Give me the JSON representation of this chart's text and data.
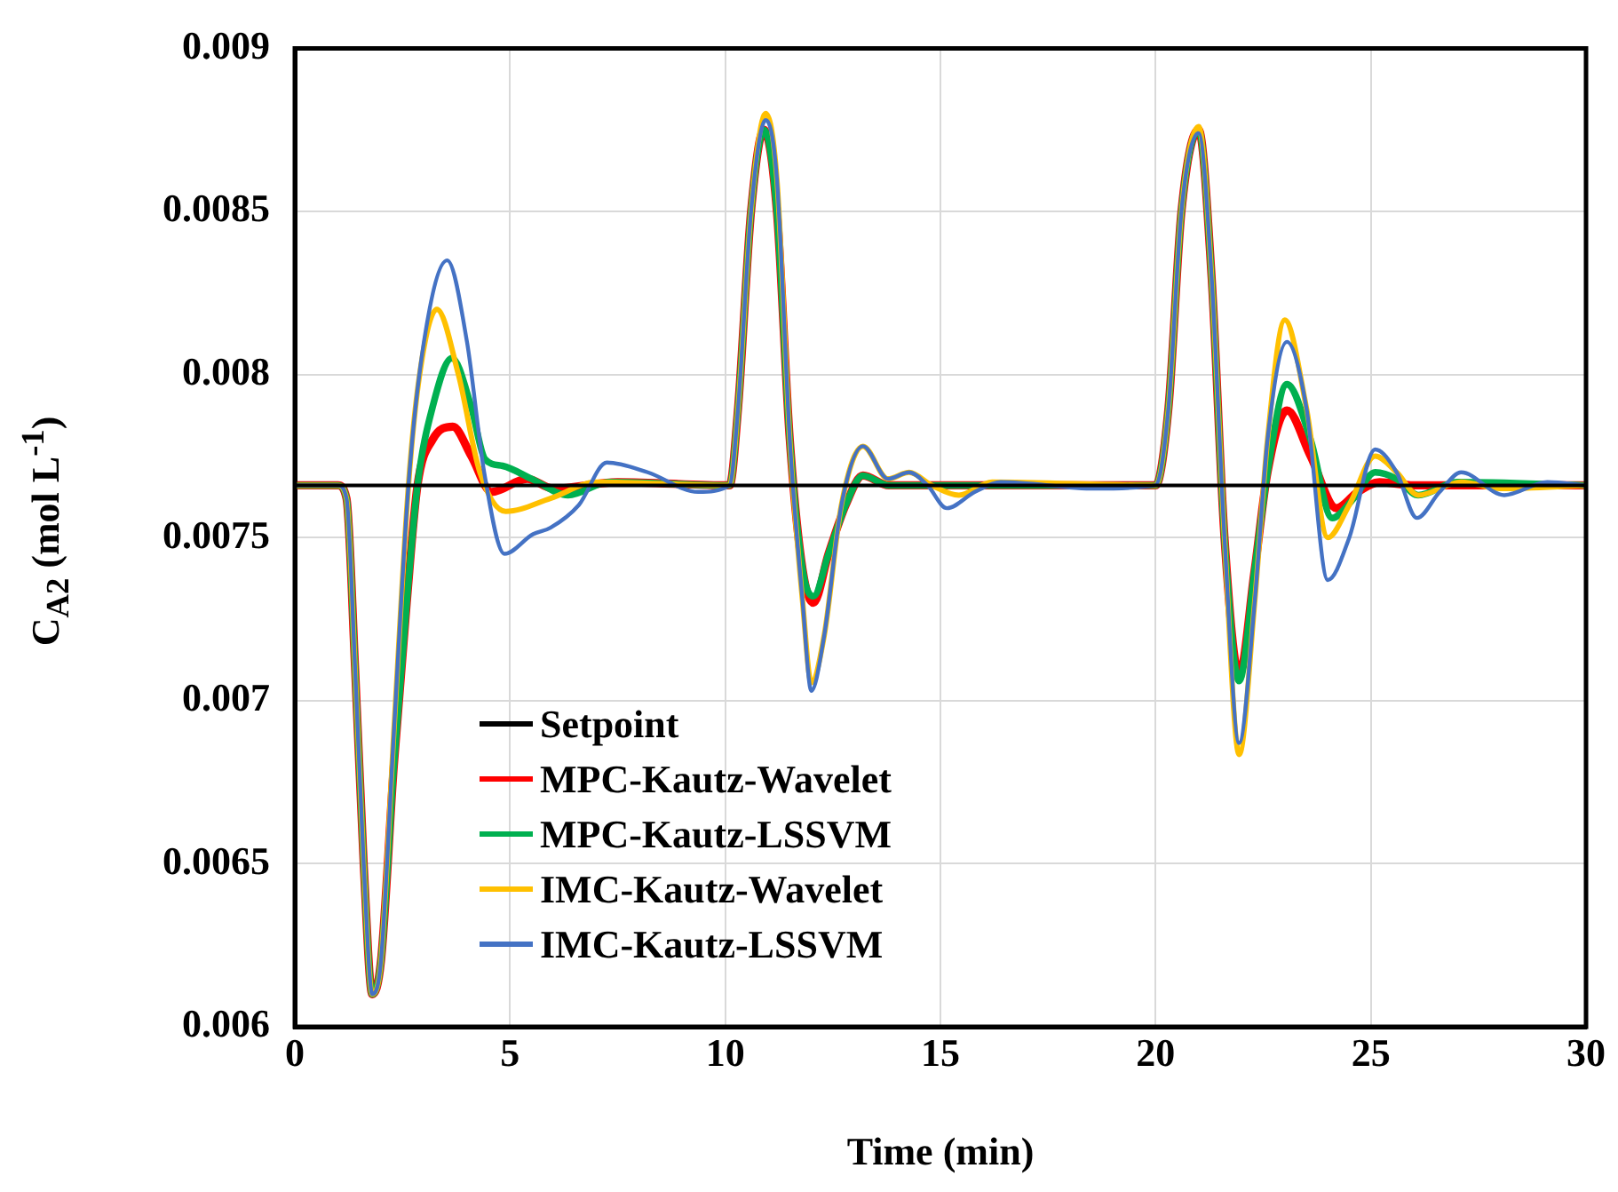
{
  "chart_data": {
    "type": "line",
    "xlabel": "Time (min)",
    "ylabel": "C$_{A2}$ (mol L$^{-1}$)",
    "xlim": [
      0,
      30
    ],
    "xticks": [
      0,
      5,
      10,
      15,
      20,
      25,
      30
    ],
    "ylim": [
      0.006,
      0.009
    ],
    "yticks": [
      0.006,
      0.0065,
      0.007,
      0.0075,
      0.008,
      0.0085,
      0.009
    ],
    "grid": true,
    "legend": "bottom left",
    "marker": "none",
    "line_style": "solid",
    "series": [
      {
        "name": "Setpoint",
        "color": "#000000",
        "x": [
          0,
          30
        ],
        "values": [
          0.00766,
          0.00766
        ]
      },
      {
        "name": "MPC-Kautz-Wavelet",
        "color": "#ff0000",
        "x": [
          0,
          1.0,
          1.2,
          1.4,
          1.6,
          1.8,
          2.0,
          2.3,
          2.6,
          2.85,
          3.2,
          3.67,
          4.1,
          4.57,
          5.4,
          6.0,
          7.5,
          10.1,
          10.3,
          10.6,
          10.9,
          11.2,
          11.5,
          11.8,
          12.05,
          12.4,
          12.8,
          13.2,
          13.8,
          15,
          20.0,
          20.3,
          20.6,
          21.0,
          21.3,
          21.6,
          21.94,
          22.3,
          22.6,
          23.05,
          23.6,
          24.2,
          24.7,
          25.2,
          26,
          30
        ],
        "values": [
          0.00766,
          0.00766,
          0.00762,
          0.0071,
          0.0065,
          0.0061,
          0.0062,
          0.0068,
          0.0073,
          0.00766,
          0.0078,
          0.00784,
          0.00775,
          0.00764,
          0.00768,
          0.00765,
          0.00767,
          0.00766,
          0.0079,
          0.0085,
          0.00875,
          0.0085,
          0.0078,
          0.0074,
          0.0073,
          0.00745,
          0.0076,
          0.00769,
          0.00766,
          0.00766,
          0.00766,
          0.0079,
          0.0085,
          0.00875,
          0.0083,
          0.0075,
          0.00708,
          0.0074,
          0.0077,
          0.00789,
          0.00775,
          0.00759,
          0.00764,
          0.00767,
          0.00766,
          0.00766
        ]
      },
      {
        "name": "MPC-Kautz-LSSVM",
        "color": "#00b050",
        "x": [
          0,
          1.0,
          1.2,
          1.4,
          1.6,
          1.8,
          2.0,
          2.3,
          2.6,
          2.85,
          3.2,
          3.65,
          4.1,
          4.42,
          4.83,
          5.5,
          6.35,
          7.3,
          10.1,
          10.3,
          10.6,
          10.9,
          11.2,
          11.5,
          11.8,
          12.05,
          12.4,
          12.8,
          13.2,
          13.8,
          15,
          20.0,
          20.3,
          20.6,
          21.0,
          21.3,
          21.6,
          21.94,
          22.3,
          22.6,
          23.05,
          23.6,
          24.1,
          24.6,
          25.1,
          25.6,
          26.1,
          27,
          30
        ],
        "values": [
          0.00766,
          0.00766,
          0.00762,
          0.0071,
          0.0065,
          0.0061,
          0.0062,
          0.0068,
          0.0073,
          0.00766,
          0.0079,
          0.00805,
          0.0079,
          0.00774,
          0.00772,
          0.00768,
          0.00763,
          0.00767,
          0.00766,
          0.0079,
          0.0085,
          0.00875,
          0.0085,
          0.0078,
          0.0074,
          0.00732,
          0.00745,
          0.0076,
          0.00769,
          0.00766,
          0.00766,
          0.00766,
          0.0079,
          0.0085,
          0.00875,
          0.0083,
          0.0075,
          0.00706,
          0.0074,
          0.0077,
          0.00797,
          0.0078,
          0.00756,
          0.00762,
          0.0077,
          0.00768,
          0.00763,
          0.00767,
          0.00766
        ]
      },
      {
        "name": "IMC-Kautz-Wavelet",
        "color": "#ffc000",
        "x": [
          0,
          1.0,
          1.2,
          1.4,
          1.6,
          1.8,
          2.0,
          2.3,
          2.64,
          2.9,
          3.3,
          3.8,
          4.3,
          4.9,
          5.94,
          7.0,
          10.1,
          10.3,
          10.6,
          10.94,
          11.2,
          11.5,
          11.8,
          12.0,
          12.3,
          12.7,
          13.2,
          13.78,
          14.27,
          14.8,
          15.43,
          16.2,
          20.0,
          20.3,
          20.6,
          21.0,
          21.3,
          21.6,
          21.94,
          22.3,
          22.6,
          23.0,
          23.5,
          24.0,
          24.5,
          25.1,
          25.6,
          26.1,
          27.1,
          28,
          30
        ],
        "values": [
          0.00766,
          0.00766,
          0.00762,
          0.0071,
          0.0065,
          0.0061,
          0.0062,
          0.0069,
          0.00766,
          0.008,
          0.0082,
          0.008,
          0.0077,
          0.00758,
          0.00762,
          0.00767,
          0.00766,
          0.0079,
          0.0085,
          0.0088,
          0.0086,
          0.0078,
          0.0073,
          0.007055,
          0.0072,
          0.0076,
          0.00778,
          0.00768,
          0.0077,
          0.00766,
          0.00763,
          0.00767,
          0.00766,
          0.0079,
          0.0085,
          0.00876,
          0.0083,
          0.0075,
          0.006835,
          0.0073,
          0.0078,
          0.008167,
          0.0079,
          0.0075,
          0.0076,
          0.00775,
          0.0077,
          0.00763,
          0.00767,
          0.00765,
          0.00766
        ]
      },
      {
        "name": "IMC-Kautz-LSSVM",
        "color": "#4472c4",
        "x": [
          0,
          1.0,
          1.2,
          1.4,
          1.6,
          1.8,
          2.0,
          2.3,
          2.64,
          3.0,
          3.54,
          4.0,
          4.4,
          4.87,
          5.53,
          5.94,
          6.6,
          7.25,
          8.2,
          9.37,
          10.1,
          10.3,
          10.6,
          10.94,
          11.2,
          11.5,
          11.8,
          12.0,
          12.3,
          12.7,
          13.2,
          13.78,
          14.27,
          14.7,
          15.15,
          15.8,
          16.4,
          18.6,
          20.0,
          20.3,
          20.6,
          21.0,
          21.3,
          21.6,
          21.94,
          22.3,
          22.6,
          23.05,
          23.5,
          24.0,
          24.5,
          25.1,
          25.6,
          26.07,
          26.6,
          27.1,
          28.1,
          29.1,
          30
        ],
        "values": [
          0.00766,
          0.00766,
          0.00762,
          0.0071,
          0.0065,
          0.0061,
          0.0062,
          0.0069,
          0.00766,
          0.0081,
          0.00835,
          0.0081,
          0.0077,
          0.00745,
          0.00751,
          0.00753,
          0.0076,
          0.00773,
          0.0077,
          0.00764,
          0.00766,
          0.0079,
          0.0085,
          0.00878,
          0.0086,
          0.0078,
          0.0073,
          0.00703,
          0.0072,
          0.0076,
          0.00778,
          0.00768,
          0.0077,
          0.00766,
          0.00759,
          0.00764,
          0.00767,
          0.00765,
          0.00766,
          0.0079,
          0.0085,
          0.00874,
          0.0083,
          0.0075,
          0.00687,
          0.0073,
          0.0078,
          0.0081,
          0.0079,
          0.00737,
          0.0075,
          0.00777,
          0.0077,
          0.00756,
          0.00764,
          0.0077,
          0.00763,
          0.00767,
          0.00766
        ]
      }
    ]
  }
}
